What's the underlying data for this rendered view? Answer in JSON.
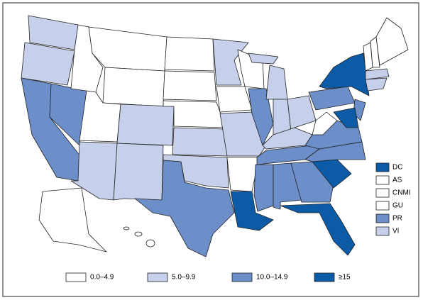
{
  "legend": {
    "bins": [
      {
        "label": "0.0–4.9",
        "color": "#ffffff"
      },
      {
        "label": "5.0–9.9",
        "color": "#c6d0ea"
      },
      {
        "label": "10.0–14.9",
        "color": "#6c8ec9"
      },
      {
        "label": "≥15",
        "color": "#0b5ba6"
      }
    ]
  },
  "territories": [
    {
      "label": "DC",
      "class": 3
    },
    {
      "label": "AS",
      "class": 0
    },
    {
      "label": "CNMI",
      "class": 0
    },
    {
      "label": "GU",
      "class": 0
    },
    {
      "label": "PR",
      "class": 2
    },
    {
      "label": "VI",
      "class": 1
    }
  ],
  "state_classes": [
    1,
    1,
    2,
    2,
    0,
    0,
    0,
    0,
    1,
    1,
    1,
    0,
    0,
    0,
    1,
    1,
    2,
    1,
    0,
    1,
    0,
    3,
    0,
    2,
    1,
    1,
    1,
    1,
    1,
    2,
    2,
    2,
    2,
    3,
    3,
    2,
    2,
    0,
    2,
    3,
    2,
    3,
    0,
    0,
    0,
    1,
    1,
    0,
    0,
    0,
    0
  ]
}
